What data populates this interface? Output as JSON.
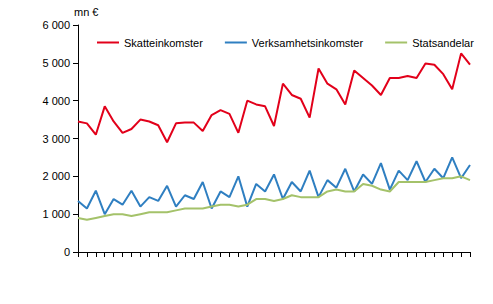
{
  "chart_data": {
    "type": "line",
    "y_label": "mn €",
    "categories": [
      null,
      null,
      null,
      null,
      null,
      null,
      null,
      null,
      null,
      null,
      null,
      null,
      null,
      null,
      null,
      null,
      null,
      null,
      null,
      null,
      null,
      null,
      null,
      null,
      null,
      null,
      null,
      null,
      null,
      null,
      null,
      null,
      null,
      null,
      null,
      null,
      null,
      null,
      null,
      null,
      null,
      null,
      null,
      null,
      null
    ],
    "series": [
      {
        "name": "Skatteinkomster",
        "color": "#e2001a",
        "values": [
          3450,
          3400,
          3100,
          3850,
          3450,
          3150,
          3250,
          3500,
          3450,
          3350,
          2900,
          3400,
          3420,
          3420,
          3200,
          3620,
          3750,
          3650,
          3150,
          4000,
          3900,
          3850,
          3330,
          4450,
          4150,
          4050,
          3550,
          4850,
          4450,
          4300,
          3900,
          4800,
          4600,
          4400,
          4150,
          4600,
          4600,
          4650,
          4600,
          4980,
          4950,
          4700,
          4300,
          5250,
          4950
        ]
      },
      {
        "name": "Verksamhetsinkomster",
        "color": "#2f7fc1",
        "values": [
          1350,
          1150,
          1620,
          1000,
          1400,
          1250,
          1620,
          1200,
          1450,
          1350,
          1750,
          1200,
          1500,
          1400,
          1850,
          1150,
          1600,
          1450,
          2000,
          1200,
          1800,
          1600,
          2050,
          1400,
          1850,
          1600,
          2150,
          1450,
          1900,
          1700,
          2200,
          1600,
          2050,
          1800,
          2350,
          1650,
          2150,
          1900,
          2400,
          1850,
          2200,
          1950,
          2500,
          1950,
          2300
        ]
      },
      {
        "name": "Statsandelar",
        "color": "#a4c26a",
        "values": [
          900,
          850,
          900,
          950,
          1000,
          1000,
          950,
          1000,
          1050,
          1050,
          1050,
          1100,
          1150,
          1150,
          1150,
          1200,
          1250,
          1250,
          1200,
          1250,
          1400,
          1400,
          1350,
          1400,
          1500,
          1450,
          1450,
          1450,
          1600,
          1650,
          1600,
          1600,
          1800,
          1750,
          1650,
          1600,
          1850,
          1850,
          1850,
          1850,
          1900,
          1950,
          1950,
          2000,
          1900
        ]
      }
    ],
    "ylim": [
      0,
      6000
    ],
    "yticks": [
      0,
      {
        "value": 1000,
        "label": "1 000"
      },
      {
        "value": 2000,
        "label": "2 000"
      },
      {
        "value": 3000,
        "label": "3 000"
      },
      {
        "value": 4000,
        "label": "4 000"
      },
      {
        "value": 5000,
        "label": "5 000"
      },
      {
        "value": 6000,
        "label": "6 000"
      }
    ],
    "grid": false,
    "legend": "top",
    "tick_labels": "y"
  }
}
